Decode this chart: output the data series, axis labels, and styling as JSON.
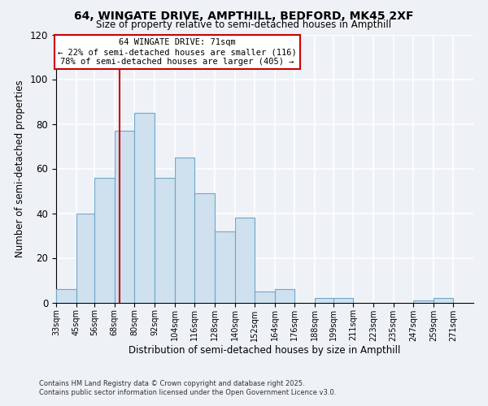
{
  "title_line1": "64, WINGATE DRIVE, AMPTHILL, BEDFORD, MK45 2XF",
  "title_line2": "Size of property relative to semi-detached houses in Ampthill",
  "bar_labels": [
    "33sqm",
    "45sqm",
    "56sqm",
    "68sqm",
    "80sqm",
    "92sqm",
    "104sqm",
    "116sqm",
    "128sqm",
    "140sqm",
    "152sqm",
    "164sqm",
    "176sqm",
    "188sqm",
    "199sqm",
    "211sqm",
    "223sqm",
    "235sqm",
    "247sqm",
    "259sqm",
    "271sqm"
  ],
  "bar_values": [
    6,
    40,
    56,
    77,
    85,
    56,
    65,
    49,
    32,
    38,
    5,
    6,
    0,
    2,
    2,
    0,
    0,
    0,
    1,
    2,
    0
  ],
  "bar_color": "#cfe0ef",
  "bar_edge_color": "#6fa8c8",
  "vline_x": 71,
  "vline_color": "#cc0000",
  "xlabel": "Distribution of semi-detached houses by size in Ampthill",
  "ylabel": "Number of semi-detached properties",
  "ylim": [
    0,
    120
  ],
  "yticks": [
    0,
    20,
    40,
    60,
    80,
    100,
    120
  ],
  "annotation_title": "64 WINGATE DRIVE: 71sqm",
  "annotation_line1": "← 22% of semi-detached houses are smaller (116)",
  "annotation_line2": "78% of semi-detached houses are larger (405) →",
  "annotation_box_color": "#ffffff",
  "annotation_box_edge_color": "#cc0000",
  "footer_line1": "Contains HM Land Registry data © Crown copyright and database right 2025.",
  "footer_line2": "Contains public sector information licensed under the Open Government Licence v3.0.",
  "background_color": "#eef2f7",
  "grid_color": "#ffffff",
  "bin_edges": [
    33,
    45,
    56,
    68,
    80,
    92,
    104,
    116,
    128,
    140,
    152,
    164,
    176,
    188,
    199,
    211,
    223,
    235,
    247,
    259,
    271,
    283
  ]
}
